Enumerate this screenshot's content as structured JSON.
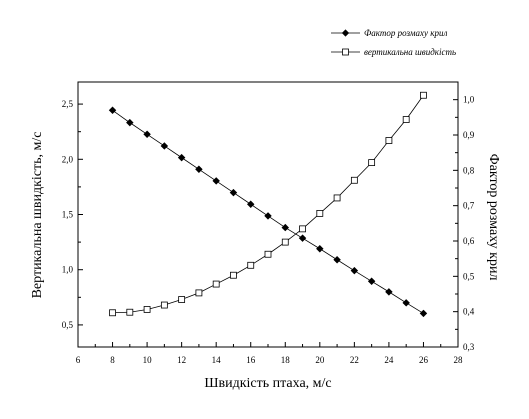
{
  "chart_data": {
    "type": "line",
    "xlabel": "Швидкість птаха, м/с",
    "ylabel_left": "Вертикальна швидкість, м/с",
    "ylabel_right": "Фактор розмаху крил",
    "xlim": [
      6,
      28
    ],
    "ylim_left": [
      0.3,
      2.7
    ],
    "ylim_right": [
      0.3,
      1.05
    ],
    "x_ticks": [
      6,
      8,
      10,
      12,
      14,
      16,
      18,
      20,
      22,
      24,
      26,
      28
    ],
    "x_tick_labels": [
      "6",
      "8",
      "10",
      "12",
      "14",
      "16",
      "18",
      "20",
      "22",
      "24",
      "26",
      "28"
    ],
    "y_left_ticks": [
      0.5,
      1.0,
      1.5,
      2.0,
      2.5
    ],
    "y_left_tick_labels": [
      "0,5",
      "1,0",
      "1,5",
      "2,0",
      "2,5"
    ],
    "y_right_ticks": [
      0.3,
      0.4,
      0.5,
      0.6,
      0.7,
      0.8,
      0.9,
      1.0
    ],
    "y_right_tick_labels": [
      "0,3",
      "0,4",
      "0,5",
      "0,6",
      "0,7",
      "0,8",
      "0,9",
      "1,0"
    ],
    "grid": false,
    "legend_position": "top-right",
    "series": [
      {
        "name": "Фактор розмаху крил",
        "axis": "right",
        "marker": "filled-diamond",
        "color": "#000000",
        "x": [
          8,
          9,
          10,
          11,
          12,
          13,
          14,
          15,
          16,
          17,
          18,
          19,
          20,
          21,
          22,
          23,
          24,
          25,
          26
        ],
        "values": [
          0.97,
          0.935,
          0.902,
          0.869,
          0.836,
          0.803,
          0.77,
          0.737,
          0.704,
          0.671,
          0.638,
          0.608,
          0.578,
          0.547,
          0.516,
          0.486,
          0.456,
          0.425,
          0.395
        ]
      },
      {
        "name": "вертикальна швидкість",
        "axis": "left",
        "marker": "open-square",
        "color": "#000000",
        "x": [
          8,
          9,
          10,
          11,
          12,
          13,
          14,
          15,
          16,
          17,
          18,
          19,
          20,
          21,
          22,
          23,
          24,
          25,
          26
        ],
        "values": [
          0.61,
          0.615,
          0.64,
          0.68,
          0.73,
          0.79,
          0.87,
          0.95,
          1.04,
          1.14,
          1.25,
          1.37,
          1.51,
          1.65,
          1.81,
          1.97,
          2.17,
          2.36,
          2.58
        ]
      }
    ]
  }
}
